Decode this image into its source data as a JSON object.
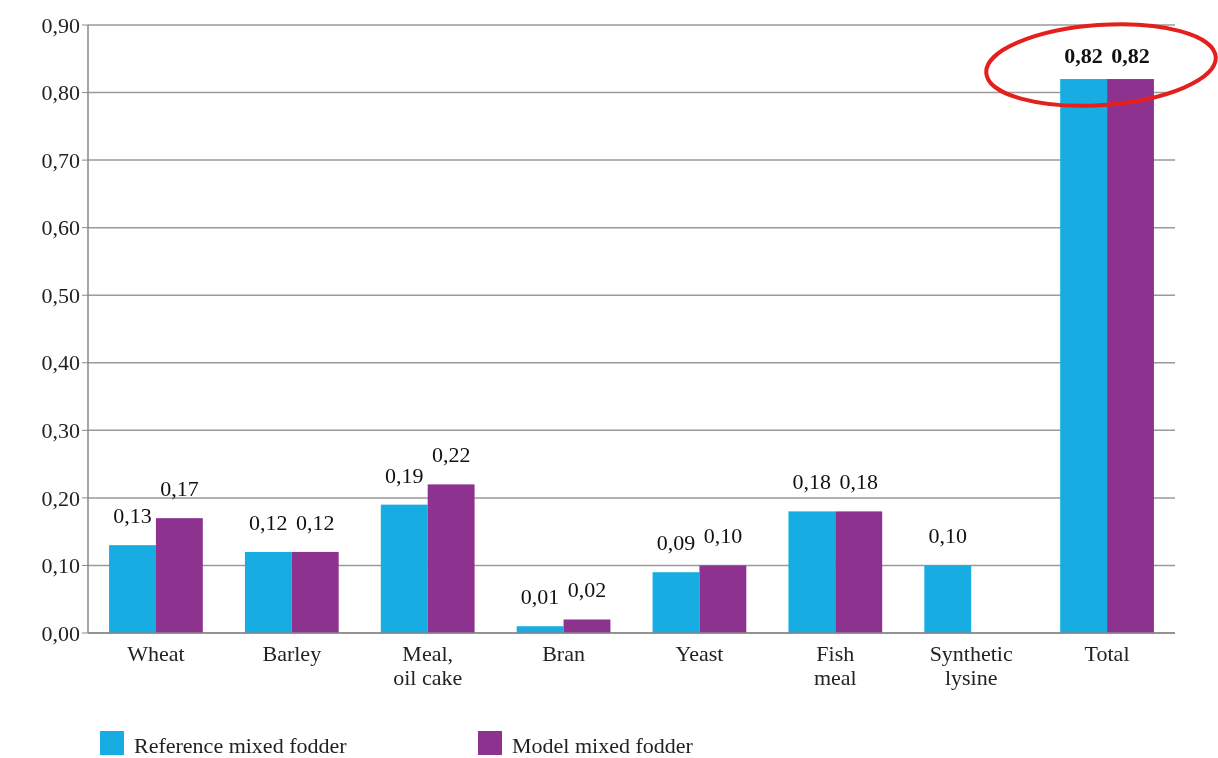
{
  "chart_data": {
    "type": "bar",
    "categories": [
      "Wheat",
      "Barley",
      "Meal, oil cake",
      "Bran",
      "Yeast",
      "Fish meal",
      "Synthetic lysine",
      "Total"
    ],
    "series": [
      {
        "name": "Reference mixed fodder",
        "color": "#17ade2",
        "values": [
          0.13,
          0.12,
          0.19,
          0.01,
          0.09,
          0.18,
          0.1,
          0.82
        ],
        "value_labels": [
          "0,13",
          "0,12",
          "0,19",
          "0,01",
          "0,09",
          "0,18",
          "0,10",
          "0,82"
        ]
      },
      {
        "name": "Model mixed fodder",
        "color": "#8e3290",
        "values": [
          0.17,
          0.12,
          0.22,
          0.02,
          0.1,
          0.18,
          null,
          0.82
        ],
        "value_labels": [
          "0,17",
          "0,12",
          "0,22",
          "0,02",
          "0,10",
          "0,18",
          null,
          "0,82"
        ]
      }
    ],
    "ylim": [
      0,
      0.9
    ],
    "yticks": [
      {
        "value": 0,
        "label": "0,00"
      },
      {
        "value": 0.1,
        "label": "0,10"
      },
      {
        "value": 0.2,
        "label": "0,20"
      },
      {
        "value": 0.3,
        "label": "0,30"
      },
      {
        "value": 0.4,
        "label": "0,40"
      },
      {
        "value": 0.5,
        "label": "0,50"
      },
      {
        "value": 0.6,
        "label": "0,60"
      },
      {
        "value": 0.7,
        "label": "0,70"
      },
      {
        "value": 0.8,
        "label": "0,80"
      },
      {
        "value": 0.9,
        "label": "0,90"
      }
    ],
    "grid": "y",
    "legend": "bottom left"
  }
}
